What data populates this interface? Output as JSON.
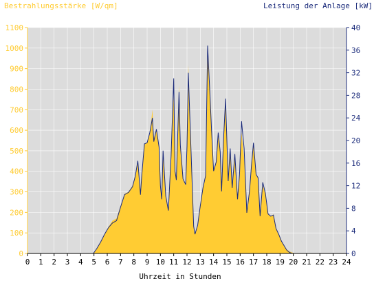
{
  "colors": {
    "left_axis": "#ffcc33",
    "right_axis": "#1a2a7a",
    "fill": "#ffcc33",
    "line": "#1a2a7a",
    "plot_bg": "#dcdcdc",
    "grid": "#ffffff",
    "text": "#000000"
  },
  "chart_data": {
    "type": "area",
    "xlabel": "Uhrzeit in Stunden",
    "y_left_label": "Bestrahlungsstärke [W/qm]",
    "y_right_label": "Leistung der Anlage [kW]",
    "xlim": [
      0,
      24
    ],
    "ylim_left": [
      0,
      1100
    ],
    "ylim_right": [
      0,
      40
    ],
    "x_ticks": [
      "0",
      "1",
      "2",
      "3",
      "4",
      "5",
      "6",
      "7",
      "8",
      "9",
      "10",
      "11",
      "12",
      "13",
      "14",
      "15",
      "16",
      "17",
      "18",
      "19",
      "20",
      "21",
      "22",
      "23",
      "24"
    ],
    "y_left_ticks": [
      "0",
      "100",
      "200",
      "300",
      "400",
      "500",
      "600",
      "700",
      "800",
      "900",
      "1000",
      "1100"
    ],
    "y_right_ticks": [
      "0",
      "4",
      "8",
      "12",
      "16",
      "20",
      "24",
      "28",
      "32",
      "36",
      "40"
    ],
    "grid": true,
    "irradiance": {
      "name": "Bestrahlungsstärke",
      "x": [
        0,
        4.95,
        5.2,
        5.5,
        5.8,
        6.1,
        6.4,
        6.7,
        7.0,
        7.3,
        7.6,
        7.9,
        8.1,
        8.3,
        8.5,
        8.6,
        8.8,
        9.0,
        9.2,
        9.4,
        9.5,
        9.7,
        9.9,
        10.0,
        10.1,
        10.2,
        10.4,
        10.6,
        10.8,
        11.0,
        11.1,
        11.2,
        11.4,
        11.5,
        11.7,
        11.9,
        12.0,
        12.1,
        12.3,
        12.5,
        12.6,
        12.8,
        13.0,
        13.2,
        13.4,
        13.55,
        13.7,
        13.85,
        14.0,
        14.2,
        14.35,
        14.5,
        14.6,
        14.75,
        14.9,
        15.1,
        15.25,
        15.4,
        15.6,
        15.8,
        15.95,
        16.1,
        16.3,
        16.5,
        16.7,
        16.85,
        17.0,
        17.2,
        17.35,
        17.5,
        17.7,
        17.9,
        18.1,
        18.3,
        18.5,
        18.7,
        18.9,
        19.1,
        19.3,
        19.5,
        19.7,
        19.9,
        20.1,
        20.3,
        24
      ],
      "values": [
        0,
        0,
        20,
        55,
        95,
        130,
        160,
        170,
        230,
        290,
        300,
        330,
        380,
        440,
        280,
        390,
        530,
        540,
        580,
        700,
        560,
        600,
        520,
        330,
        270,
        500,
        280,
        210,
        460,
        780,
        400,
        350,
        820,
        530,
        360,
        330,
        520,
        920,
        500,
        140,
        95,
        140,
        230,
        320,
        380,
        1010,
        820,
        590,
        400,
        440,
        580,
        490,
        300,
        560,
        750,
        350,
        510,
        320,
        480,
        260,
        380,
        590,
        460,
        200,
        300,
        420,
        530,
        380,
        370,
        180,
        330,
        290,
        190,
        180,
        190,
        120,
        95,
        60,
        40,
        20,
        10,
        5,
        0,
        0,
        0
      ]
    },
    "power": {
      "name": "Leistung",
      "x": [
        0,
        4.95,
        5.2,
        5.5,
        5.8,
        6.1,
        6.4,
        6.7,
        7.0,
        7.3,
        7.6,
        7.9,
        8.1,
        8.3,
        8.5,
        8.6,
        8.8,
        9.0,
        9.2,
        9.4,
        9.5,
        9.7,
        9.9,
        10.0,
        10.1,
        10.2,
        10.4,
        10.6,
        10.8,
        11.0,
        11.1,
        11.2,
        11.4,
        11.5,
        11.7,
        11.9,
        12.0,
        12.1,
        12.3,
        12.5,
        12.6,
        12.8,
        13.0,
        13.2,
        13.4,
        13.55,
        13.7,
        13.85,
        14.0,
        14.2,
        14.35,
        14.5,
        14.6,
        14.75,
        14.9,
        15.1,
        15.25,
        15.4,
        15.6,
        15.8,
        15.95,
        16.1,
        16.3,
        16.5,
        16.7,
        16.85,
        17.0,
        17.2,
        17.35,
        17.5,
        17.7,
        17.9,
        18.1,
        18.3,
        18.5,
        18.7,
        18.9,
        19.1,
        19.3,
        19.5,
        19.7,
        19.9,
        20.1,
        20.3,
        24
      ],
      "values": [
        0,
        0,
        0.8,
        2.0,
        3.4,
        4.6,
        5.4,
        5.8,
        8.2,
        10.4,
        10.8,
        11.8,
        13.6,
        16.4,
        10.4,
        14.0,
        19.4,
        19.6,
        21.4,
        24.0,
        19.8,
        22.0,
        18.8,
        12.0,
        9.6,
        18.2,
        10.2,
        7.6,
        17.2,
        31.0,
        14.6,
        13.0,
        28.6,
        19.2,
        13.2,
        12.2,
        19.0,
        32.0,
        18.4,
        4.8,
        3.4,
        5.0,
        8.4,
        11.6,
        13.8,
        36.8,
        29.4,
        21.6,
        14.6,
        16.2,
        21.4,
        18.0,
        11.0,
        20.4,
        27.4,
        12.8,
        18.6,
        11.6,
        17.6,
        9.6,
        14.0,
        23.4,
        18.6,
        7.2,
        11.0,
        15.6,
        19.6,
        14.0,
        13.4,
        6.6,
        12.6,
        10.6,
        7.0,
        6.6,
        6.8,
        4.4,
        3.4,
        2.2,
        1.4,
        0.6,
        0.2,
        0,
        0,
        0,
        0
      ]
    }
  }
}
